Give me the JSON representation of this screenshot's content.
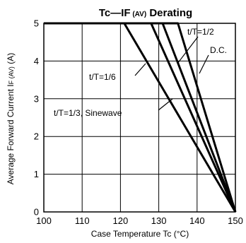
{
  "chart_data": {
    "type": "line",
    "title": "Tc—IF (AV)  Derating",
    "title_parts": {
      "main": "Tc—I",
      "sub_f": "F",
      "sub_av": " (AV)",
      "rest": "  Derating"
    },
    "xlabel": "Case Temperature  Tc (°C)",
    "ylabel": "Average Forward Current  IF (AV) (A)",
    "ylabel_parts": {
      "main": "Average Forward Current  I",
      "sub": "F (AV)",
      "unit": " (A)"
    },
    "xlim": [
      100,
      150
    ],
    "ylim": [
      0,
      5
    ],
    "x_ticks": [
      "100",
      "110",
      "120",
      "130",
      "140",
      "150"
    ],
    "y_ticks": [
      "0",
      "1",
      "2",
      "3",
      "4",
      "5"
    ],
    "grid": true,
    "series": [
      {
        "name": "t/T=1/6",
        "x": [
          100,
          121,
          150
        ],
        "y": [
          5,
          5,
          0
        ]
      },
      {
        "name": "t/T=1/3, Sinewave",
        "x": [
          100,
          128,
          150
        ],
        "y": [
          5,
          5,
          0
        ]
      },
      {
        "name": "t/T=1/2",
        "x": [
          100,
          131,
          150
        ],
        "y": [
          5,
          5,
          0
        ]
      },
      {
        "name": "D.C.",
        "x": [
          100,
          135,
          150
        ],
        "y": [
          5,
          5,
          0
        ]
      }
    ],
    "annotations": [
      {
        "text": "t/T=1/2",
        "series": 2
      },
      {
        "text": "D.C.",
        "series": 3
      },
      {
        "text": "t/T=1/6",
        "series": 0
      },
      {
        "text": "t/T=1/3, Sinewave",
        "series": 1
      }
    ]
  }
}
